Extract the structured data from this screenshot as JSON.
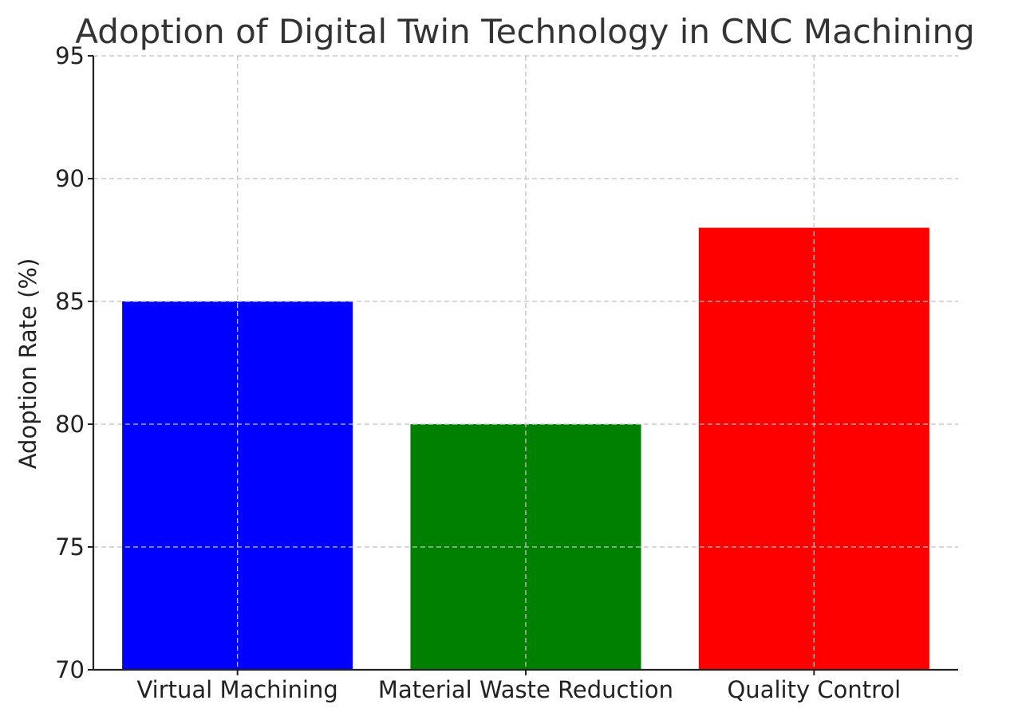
{
  "chart_data": {
    "type": "bar",
    "title": "Adoption of Digital Twin Technology in CNC Machining",
    "xlabel": "",
    "ylabel": "Adoption Rate (%)",
    "categories": [
      "Virtual Machining",
      "Material Waste Reduction",
      "Quality Control"
    ],
    "values": [
      85,
      80,
      88
    ],
    "colors": [
      "#0000ff",
      "#008000",
      "#ff0000"
    ],
    "ylim": [
      70,
      95
    ],
    "yticks": [
      70,
      75,
      80,
      85,
      90,
      95
    ],
    "grid": true,
    "legend": "none"
  }
}
